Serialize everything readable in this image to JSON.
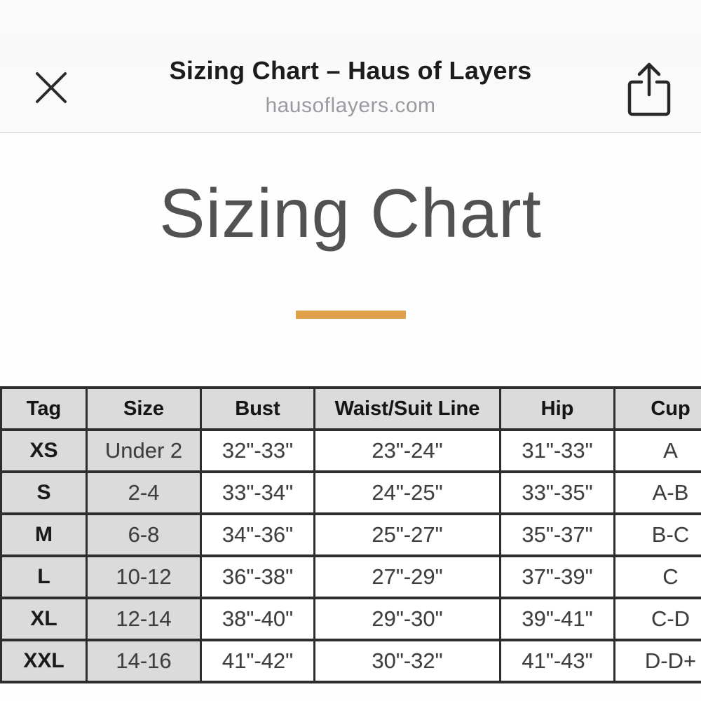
{
  "browser_bar": {
    "title": "Sizing Chart – Haus of Layers",
    "url": "hausoflayers.com",
    "close_icon": "close-x",
    "share_icon": "ios-share-arrow"
  },
  "page": {
    "heading": "Sizing Chart",
    "divider_color": "#E1A14B"
  },
  "sizing_table": {
    "columns": [
      "Tag",
      "Size",
      "Bust",
      "Waist/Suit Line",
      "Hip",
      "Cup"
    ],
    "rows": [
      [
        "XS",
        "Under 2",
        "32\"-33\"",
        "23\"-24\"",
        "31\"-33\"",
        "A"
      ],
      [
        "S",
        "2-4",
        "33\"-34\"",
        "24\"-25\"",
        "33\"-35\"",
        "A-B"
      ],
      [
        "M",
        "6-8",
        "34\"-36\"",
        "25\"-27\"",
        "35\"-37\"",
        "B-C"
      ],
      [
        "L",
        "10-12",
        "36\"-38\"",
        "27\"-29\"",
        "37\"-39\"",
        "C"
      ],
      [
        "XL",
        "12-14",
        "38\"-40\"",
        "29\"-30\"",
        "39\"-41\"",
        "C-D"
      ],
      [
        "XXL",
        "14-16",
        "41\"-42\"",
        "30\"-32\"",
        "41\"-43\"",
        "D-D+"
      ]
    ],
    "shaded_columns": [
      0,
      1
    ],
    "cell_colors": {
      "shaded_bg": "#DCDBDB",
      "border": "#2E2D2D"
    }
  }
}
